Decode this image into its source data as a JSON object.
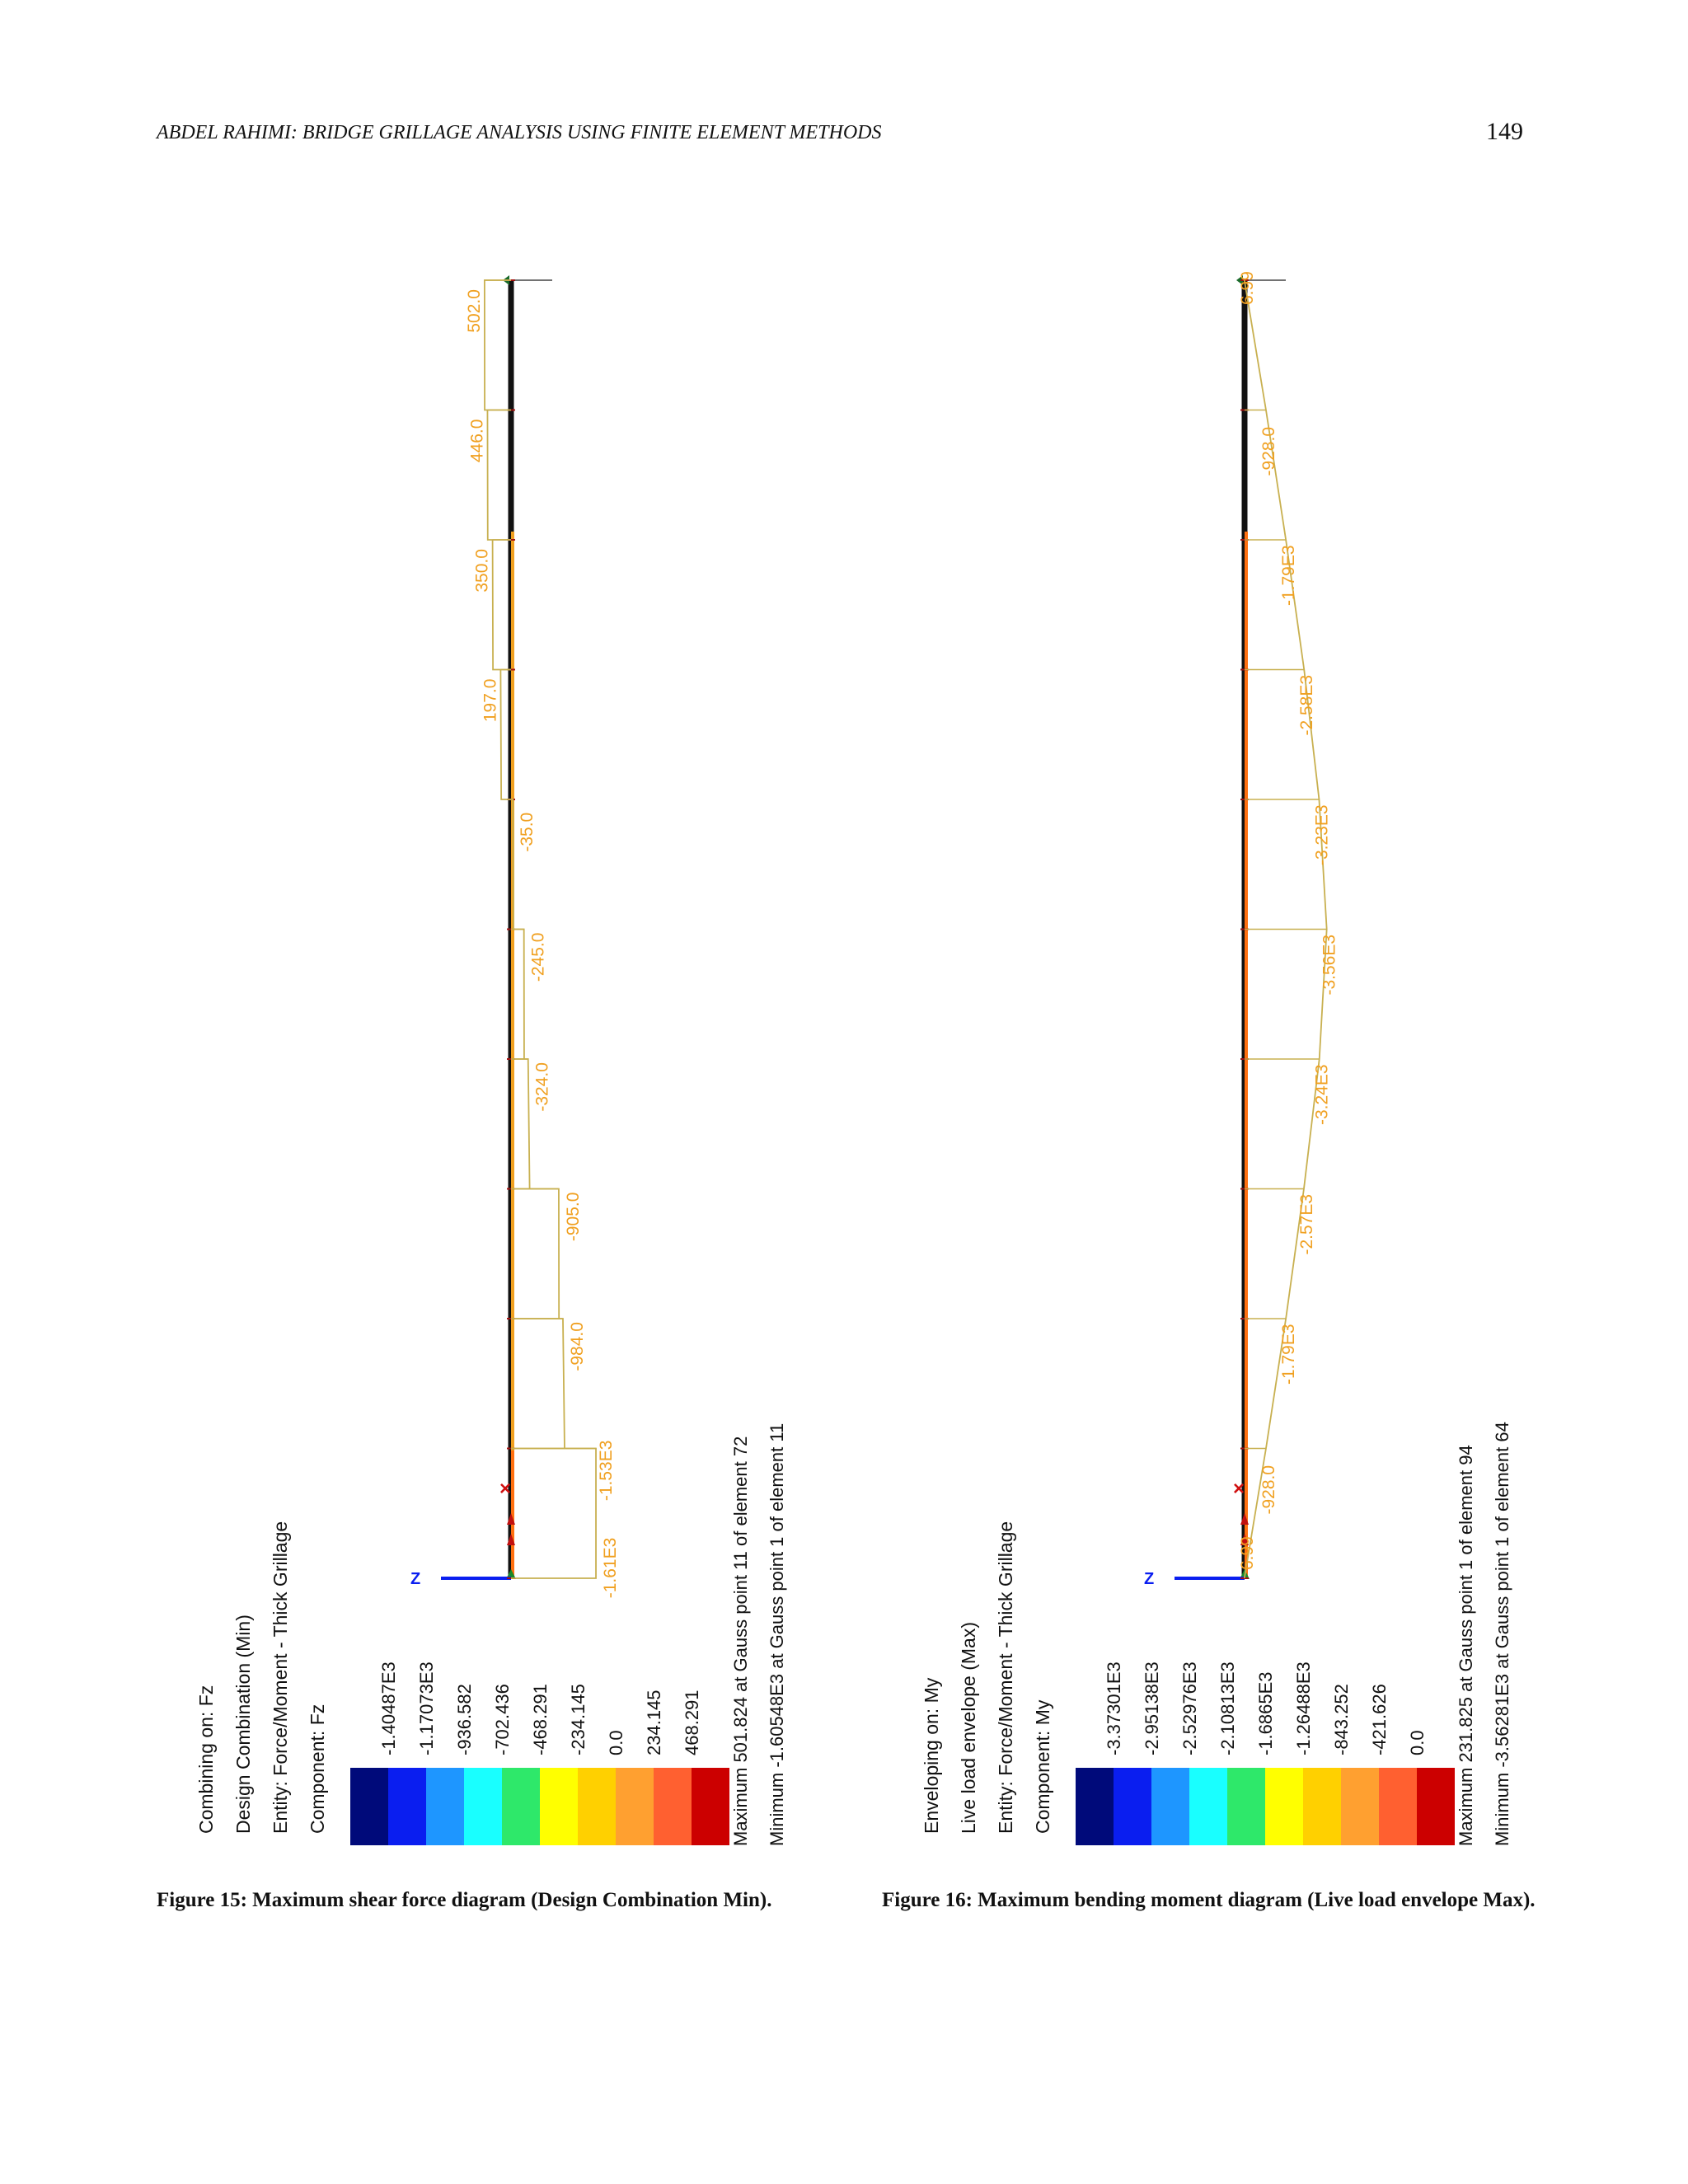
{
  "header": {
    "running_title": "ABDEL RAHIMI: BRIDGE GRILLAGE ANALYSIS USING FINITE ELEMENT METHODS",
    "page_number": "149"
  },
  "figures": [
    {
      "id": "fig15",
      "legend_header": [
        "Combining on: Fz",
        "Design Combination (Min)",
        "Entity: Force/Moment - Thick Grillage",
        "Component: Fz"
      ],
      "scale_values": [
        "-1.40487E3",
        "-1.17073E3",
        "-936.582",
        "-702.436",
        "-468.291",
        "-234.145",
        "0.0",
        "234.145",
        "468.291"
      ],
      "scale_colors": [
        "#000a7a",
        "#0a1ef0",
        "#1e96ff",
        "#19ffff",
        "#2ee86a",
        "#ffff00",
        "#ffd000",
        "#ffa030",
        "#ff6030",
        "#cc0000"
      ],
      "max_text": "Maximum 501.824 at Gauss point 11 of element 72",
      "min_text": "Minimum -1.60548E3 at Gauss point 1 of element 11",
      "axis_label": "Z",
      "diagram_labels": [
        {
          "text": "502.0",
          "value": 502
        },
        {
          "text": "446.0",
          "value": 446
        },
        {
          "text": "350.0",
          "value": 350
        },
        {
          "text": "197.0",
          "value": 197
        },
        {
          "text": "-35.0",
          "value": -35
        },
        {
          "text": "-245.0",
          "value": -245
        },
        {
          "text": "-324.0",
          "value": -324
        },
        {
          "text": "-905.0",
          "value": -905
        },
        {
          "text": "-984.0",
          "value": -984
        },
        {
          "text": "-1.53E3",
          "value": -1530
        },
        {
          "text": "-1.61E3",
          "value": -1610
        }
      ],
      "caption": "Figure 15: Maximum shear force diagram (Design Combination Min)."
    },
    {
      "id": "fig16",
      "legend_header": [
        "Enveloping on: My",
        "Live load envelope (Max)",
        "Entity: Force/Moment - Thick Grillage",
        "Component: My"
      ],
      "scale_values": [
        "-3.37301E3",
        "-2.95138E3",
        "-2.52976E3",
        "-2.10813E3",
        "-1.6865E3",
        "-1.26488E3",
        "-843.252",
        "-421.626",
        "0.0"
      ],
      "scale_colors": [
        "#000a7a",
        "#0a1ef0",
        "#1e96ff",
        "#19ffff",
        "#2ee86a",
        "#ffff00",
        "#ffd000",
        "#ffa030",
        "#ff6030",
        "#cc0000"
      ],
      "max_text": "Maximum 231.825 at Gauss point 1 of element 94",
      "min_text": "Minimum -3.56281E3 at Gauss point 1 of element 64",
      "axis_label": "Z",
      "diagram_labels": [
        {
          "text": "6.99",
          "value": 6.99
        },
        {
          "text": "-928.0",
          "value": -928
        },
        {
          "text": "-1.79E3",
          "value": -1790
        },
        {
          "text": "-2.58E3",
          "value": -2580
        },
        {
          "text": "-3.23E3",
          "value": -3230
        },
        {
          "text": "-3.56E3",
          "value": -3560
        },
        {
          "text": "-3.24E3",
          "value": -3240
        },
        {
          "text": "-2.57E3",
          "value": -2570
        },
        {
          "text": "-1.79E3",
          "value": -1790
        },
        {
          "text": "-928.0",
          "value": -928
        },
        {
          "text": "6.99",
          "value": 6.99
        }
      ],
      "caption": "Figure 16: Maximum bending moment diagram (Live load envelope Max)."
    }
  ]
}
